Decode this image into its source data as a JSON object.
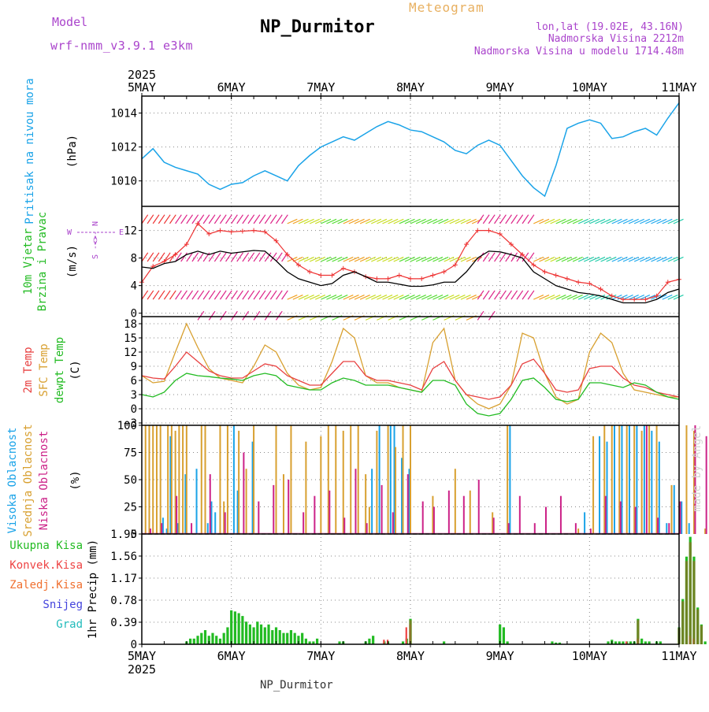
{
  "header": {
    "meteogram_label": "Meteogram",
    "station_title": "NP_Durmitor",
    "model_label": "Model",
    "model_name": "wrf-nmm_v3.9.1 e3km",
    "lonlat": "lon,lat (19.02E, 43.16N)",
    "altitude": "Nadmorska Visina 2212m",
    "model_altitude": "Nadmorska Visina u modelu 1714.48m",
    "footer_station": "NP_Durmitor",
    "made_by": "made by Angel"
  },
  "colors": {
    "pressure": "#1aa3e8",
    "wind_speed": "#000000",
    "gust": "#ee3333",
    "temp2m": "#e84040",
    "sfc_temp": "#d8a030",
    "dewpoint": "#22bb22",
    "high_cloud": "#1aa3e8",
    "mid_cloud": "#d8a030",
    "low_cloud": "#cc2288",
    "total_precip": "#22bb22",
    "convective_precip": "#ee4444",
    "frozen_precip": "#f07030",
    "snow": "#4444dd",
    "hail": "#22bbbb",
    "title": "#000000",
    "meta": "#aa44cc",
    "meteogram_label": "#e8b060"
  },
  "time_axis": {
    "year": "2025",
    "labels": [
      "5MAY",
      "6MAY",
      "7MAY",
      "8MAY",
      "9MAY",
      "10MAY",
      "11MAY"
    ]
  },
  "chart_data": [
    {
      "id": "pressure",
      "type": "line",
      "ylabel_lines": [
        "Pritisak na nivou mora"
      ],
      "unit": "(hPa)",
      "ylim": [
        1008.5,
        1015.0
      ],
      "y_ticks": [
        1010,
        1012,
        1014
      ],
      "y_tick_labels": [
        "1010",
        "1012",
        "1014"
      ],
      "x_hours_step": 3,
      "series": [
        {
          "name": "Pritisak na nivou mora",
          "color_key": "pressure",
          "values": [
            1011.3,
            1011.9,
            1011.1,
            1010.8,
            1010.6,
            1010.4,
            1009.8,
            1009.5,
            1009.8,
            1009.9,
            1010.3,
            1010.6,
            1010.3,
            1010.0,
            1010.9,
            1011.5,
            1012.0,
            1012.3,
            1012.6,
            1012.4,
            1012.8,
            1013.2,
            1013.5,
            1013.3,
            1013.0,
            1012.9,
            1012.6,
            1012.3,
            1011.8,
            1011.6,
            1012.1,
            1012.4,
            1012.1,
            1011.2,
            1010.3,
            1009.6,
            1009.1,
            1010.9,
            1013.1,
            1013.4,
            1013.6,
            1013.4,
            1012.5,
            1012.6,
            1012.9,
            1013.1,
            1012.7,
            1013.7,
            1014.6
          ]
        }
      ]
    },
    {
      "id": "wind",
      "type": "line",
      "ylabel_lines": [
        "10m Vjetar",
        "Brzina i Pravac"
      ],
      "unit": "(m/s)",
      "compass": [
        "N",
        "S",
        "W",
        "E"
      ],
      "ylim": [
        -0.5,
        15.5
      ],
      "y_ticks": [
        0,
        4,
        8,
        12
      ],
      "y_tick_labels": [
        "0",
        "4",
        "8",
        "12"
      ],
      "x_hours_step": 3,
      "barb_rows": [
        13,
        7.5,
        2,
        -1
      ],
      "series": [
        {
          "name": "wind speed",
          "color_key": "wind_speed",
          "values": [
            6.7,
            6.5,
            7.2,
            7.5,
            8.5,
            9.0,
            8.5,
            9.0,
            8.7,
            8.9,
            9.1,
            9.0,
            7.6,
            6.0,
            5.0,
            4.5,
            4.0,
            4.3,
            5.5,
            6.0,
            5.3,
            4.5,
            4.5,
            4.2,
            3.9,
            3.9,
            4.1,
            4.5,
            4.5,
            6.0,
            8.0,
            9.0,
            8.9,
            8.5,
            8.0,
            6.0,
            5.0,
            4.0,
            3.5,
            3.0,
            2.8,
            2.5,
            2.0,
            1.5,
            1.5,
            1.5,
            2.0,
            3.0,
            3.5
          ]
        },
        {
          "name": "gust",
          "color_key": "gust",
          "values": [
            4.5,
            6.8,
            7.5,
            8.5,
            10.0,
            13.0,
            11.5,
            12.0,
            11.8,
            11.9,
            12.0,
            11.8,
            10.5,
            8.5,
            7.0,
            6.0,
            5.5,
            5.5,
            6.5,
            6.0,
            5.3,
            5.0,
            5.0,
            5.5,
            5.0,
            5.0,
            5.5,
            6.0,
            7.0,
            10.0,
            12.0,
            12.0,
            11.5,
            10.0,
            8.5,
            7.0,
            6.0,
            5.5,
            5.0,
            4.5,
            4.3,
            3.5,
            2.5,
            2.0,
            2.0,
            2.0,
            2.5,
            4.5,
            4.9
          ]
        }
      ]
    },
    {
      "id": "temperature",
      "type": "line",
      "ylabel_lines": [
        "2m Temp",
        "SFC Temp",
        "dewpt Temp"
      ],
      "unit": "(C)",
      "ylim": [
        -3.5,
        19.5
      ],
      "y_ticks": [
        -3,
        0,
        3,
        6,
        9,
        12,
        15,
        18
      ],
      "y_tick_labels": [
        "−3",
        "0",
        "3",
        "6",
        "9",
        "12",
        "15",
        "18"
      ],
      "x_hours_step": 3,
      "series": [
        {
          "name": "SFC Temp",
          "color_key": "sfc_temp",
          "values": [
            7.0,
            5.5,
            5.8,
            12.0,
            18.0,
            13.0,
            8.5,
            6.5,
            6.0,
            5.5,
            9.0,
            13.5,
            12.0,
            7.5,
            5.0,
            4.0,
            4.5,
            10.0,
            17.0,
            15.0,
            7.0,
            5.5,
            5.5,
            4.5,
            4.0,
            3.5,
            14.0,
            17.0,
            6.0,
            3.0,
            1.0,
            0.0,
            1.0,
            5.0,
            16.0,
            15.0,
            7.5,
            2.5,
            1.0,
            2.0,
            12.0,
            16.0,
            14.0,
            7.5,
            4.0,
            3.5,
            3.0,
            2.5,
            2.5
          ]
        },
        {
          "name": "2m Temp",
          "color_key": "temp2m",
          "values": [
            7.0,
            6.5,
            6.3,
            9.0,
            12.0,
            10.0,
            8.0,
            7.0,
            6.5,
            6.5,
            8.0,
            9.5,
            9.0,
            7.0,
            6.0,
            5.0,
            5.0,
            7.5,
            10.0,
            10.0,
            7.0,
            6.0,
            6.0,
            5.5,
            5.0,
            4.0,
            8.5,
            10.0,
            6.0,
            3.0,
            2.5,
            2.0,
            2.5,
            5.0,
            9.5,
            10.5,
            7.5,
            4.0,
            3.5,
            4.0,
            8.5,
            9.0,
            9.0,
            6.5,
            5.0,
            4.5,
            3.5,
            3.0,
            2.5
          ]
        },
        {
          "name": "dewpt Temp",
          "color_key": "dewpoint",
          "values": [
            3.0,
            2.5,
            3.5,
            6.0,
            7.5,
            7.0,
            6.8,
            6.5,
            6.3,
            6.0,
            7.0,
            7.5,
            7.0,
            5.0,
            4.5,
            4.0,
            4.0,
            5.5,
            6.5,
            6.0,
            5.0,
            5.0,
            5.0,
            4.5,
            4.0,
            3.5,
            6.0,
            6.0,
            5.0,
            1.0,
            -1.0,
            -1.5,
            -1.0,
            2.0,
            6.0,
            6.5,
            4.5,
            2.0,
            1.5,
            2.0,
            5.5,
            5.5,
            5.0,
            4.5,
            5.5,
            5.0,
            3.5,
            2.5,
            2.0
          ]
        }
      ]
    },
    {
      "id": "clouds",
      "type": "bar",
      "ylabel_lines": [
        "Visoka Oblacnost",
        "Srednja Oblacnost",
        "Niska Oblacnost"
      ],
      "unit": "(%)",
      "ylim": [
        0,
        100
      ],
      "y_ticks": [
        0,
        25,
        50,
        75,
        100
      ],
      "y_tick_labels": [
        "0",
        "25",
        "50",
        "75",
        "100"
      ],
      "x_hours_step": 1,
      "series": [
        {
          "name": "Visoka Oblacnost",
          "color_key": "high_cloud",
          "x_hours": [
            6,
            7,
            8,
            10,
            12,
            15,
            18,
            19,
            20,
            25,
            26,
            30,
            62,
            64,
            67,
            68,
            70,
            72,
            99,
            119,
            123,
            125,
            127,
            129,
            131,
            133,
            135,
            137,
            139,
            141,
            143,
            145,
            147
          ],
          "values": [
            15,
            5,
            90,
            10,
            55,
            60,
            10,
            30,
            20,
            100,
            40,
            85,
            60,
            100,
            100,
            100,
            70,
            60,
            100,
            20,
            90,
            85,
            100,
            100,
            100,
            100,
            100,
            95,
            85,
            10,
            45,
            30,
            10
          ]
        },
        {
          "name": "Srednja Oblacnost",
          "color_key": "mid_cloud",
          "x_hours": [
            1,
            2,
            3,
            4,
            5,
            7,
            8,
            9,
            10,
            11,
            12,
            16,
            17,
            21,
            22,
            23,
            26,
            28,
            30,
            36,
            38,
            40,
            44,
            48,
            50,
            52,
            54,
            56,
            58,
            60,
            61,
            63,
            66,
            68,
            70,
            72,
            78,
            84,
            88,
            94,
            98,
            117,
            121,
            124,
            126,
            128,
            130,
            132,
            134,
            136,
            138,
            142,
            146,
            148,
            151,
            155,
            156,
            160,
            164
          ],
          "values": [
            100,
            100,
            100,
            100,
            100,
            100,
            100,
            95,
            100,
            100,
            100,
            100,
            100,
            100,
            30,
            100,
            95,
            60,
            100,
            100,
            55,
            100,
            85,
            90,
            100,
            100,
            95,
            100,
            100,
            55,
            25,
            95,
            100,
            80,
            100,
            100,
            35,
            60,
            40,
            20,
            100,
            5,
            90,
            100,
            100,
            100,
            100,
            100,
            95,
            100,
            100,
            45,
            100,
            95,
            5,
            90,
            85,
            50,
            15
          ]
        },
        {
          "name": "Niska Oblacnost",
          "color_key": "low_cloud",
          "x_hours": [
            2,
            5,
            9,
            13,
            18,
            22,
            27,
            31,
            35,
            39,
            43,
            46,
            50,
            54,
            57,
            60,
            64,
            67,
            71,
            75,
            78,
            82,
            86,
            90,
            94,
            98,
            101,
            105,
            108,
            112,
            116,
            120,
            124,
            128,
            132,
            135,
            138,
            141,
            144,
            148,
            151,
            154,
            158,
            162
          ],
          "values": [
            5,
            10,
            35,
            10,
            55,
            20,
            75,
            30,
            45,
            50,
            20,
            35,
            40,
            15,
            60,
            10,
            45,
            20,
            55,
            30,
            25,
            40,
            35,
            50,
            15,
            10,
            35,
            10,
            25,
            35,
            10,
            5,
            35,
            30,
            25,
            100,
            15,
            10,
            30,
            100,
            90,
            40,
            45,
            10
          ]
        }
      ]
    },
    {
      "id": "precipitation",
      "type": "bar",
      "ylabel_lines": [
        "Ukupna Kisa",
        "Konvek.Kisa",
        "Zaledj.Kisa",
        "Snijeg",
        "Grad"
      ],
      "ylabel_colors": [
        "total_precip",
        "convective_precip",
        "frozen_precip",
        "snow",
        "hail"
      ],
      "unit": "1hr Precip (mm)",
      "ylim": [
        0,
        1.95
      ],
      "y_ticks": [
        0,
        0.39,
        0.78,
        1.17,
        1.56,
        1.95
      ],
      "y_tick_labels": [
        "0",
        "0.39",
        "0.78",
        "1.17",
        "1.56",
        "1.95"
      ],
      "x_hours_step": 1,
      "series": [
        {
          "name": "Ukupna Kisa",
          "color_key": "total_precip",
          "x_hours": [
            12,
            13,
            14,
            15,
            16,
            17,
            18,
            19,
            20,
            21,
            22,
            23,
            24,
            25,
            26,
            27,
            28,
            29,
            30,
            31,
            32,
            33,
            34,
            35,
            36,
            37,
            38,
            39,
            40,
            41,
            42,
            43,
            44,
            45,
            46,
            47,
            53,
            54,
            60,
            61,
            62,
            65,
            66,
            70,
            71,
            72,
            81,
            96,
            97,
            98,
            110,
            111,
            112,
            125,
            126,
            127,
            128,
            129,
            130,
            131,
            132,
            133,
            134,
            135,
            136,
            138,
            139,
            144,
            145,
            146,
            147,
            148,
            149,
            150,
            151
          ],
          "values": [
            0.05,
            0.1,
            0.1,
            0.15,
            0.2,
            0.25,
            0.15,
            0.2,
            0.15,
            0.1,
            0.2,
            0.3,
            0.6,
            0.58,
            0.55,
            0.5,
            0.4,
            0.35,
            0.3,
            0.4,
            0.35,
            0.3,
            0.35,
            0.25,
            0.3,
            0.25,
            0.2,
            0.2,
            0.25,
            0.2,
            0.15,
            0.2,
            0.1,
            0.05,
            0.05,
            0.1,
            0.05,
            0.05,
            0.05,
            0.1,
            0.15,
            0.05,
            0.05,
            0.05,
            0.1,
            0.45,
            0.05,
            0.35,
            0.3,
            0.05,
            0.05,
            0.03,
            0.03,
            0.05,
            0.08,
            0.05,
            0.05,
            0.05,
            0.05,
            0.05,
            0.05,
            0.45,
            0.1,
            0.05,
            0.05,
            0.05,
            0.05,
            0.3,
            0.8,
            1.55,
            1.9,
            1.55,
            0.65,
            0.35,
            0.05
          ]
        },
        {
          "name": "Konvek.Kisa",
          "color_key": "convective_precip",
          "x_hours": [
            65,
            66,
            71,
            72,
            130,
            133,
            147,
            148
          ],
          "values": [
            0.08,
            0.08,
            0.3,
            0.35,
            0.05,
            0.1,
            0.15,
            0.1
          ]
        },
        {
          "name": "Zaledj.Kisa",
          "color_key": "frozen_precip",
          "x_hours": [],
          "values": []
        },
        {
          "name": "Snijeg",
          "color_key": "snow",
          "x_hours": [],
          "values": []
        },
        {
          "name": "Grad",
          "color_key": "hail",
          "x_hours": [],
          "values": []
        }
      ]
    }
  ]
}
